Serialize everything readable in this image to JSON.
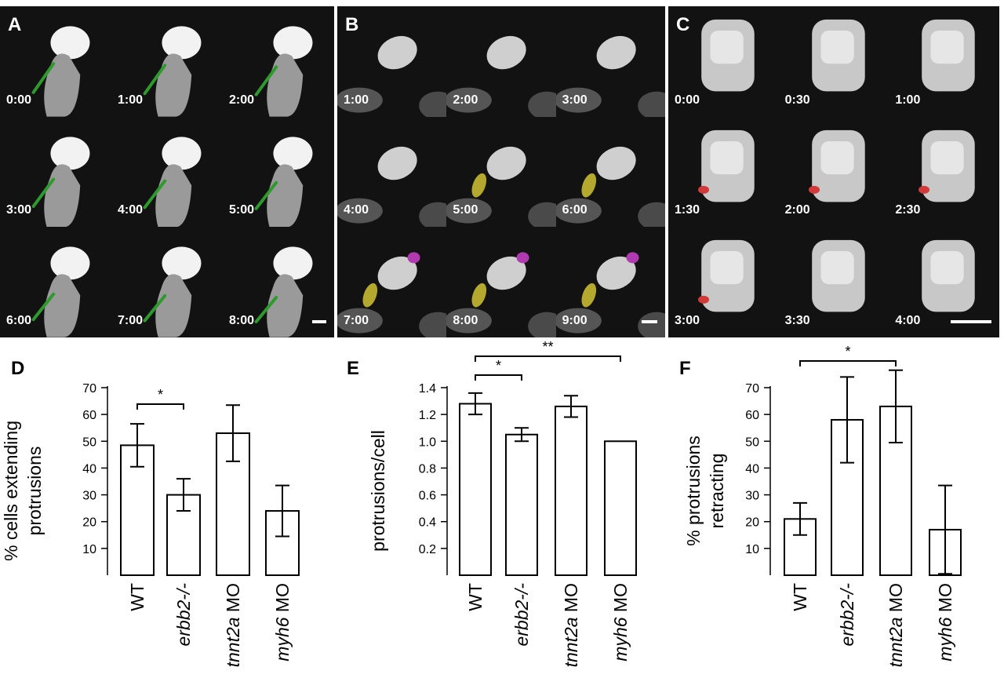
{
  "panels": {
    "A": {
      "letter": "A",
      "times": [
        "0:00",
        "1:00",
        "2:00",
        "3:00",
        "4:00",
        "5:00",
        "6:00",
        "7:00",
        "8:00"
      ],
      "overlay_color": "#2e9a2e"
    },
    "B": {
      "letter": "B",
      "times": [
        "1:00",
        "2:00",
        "3:00",
        "4:00",
        "5:00",
        "6:00",
        "7:00",
        "8:00",
        "9:00"
      ],
      "overlay_colors": [
        "#b4a82e",
        "#b03ab0"
      ]
    },
    "C": {
      "letter": "C",
      "times": [
        "0:00",
        "0:30",
        "1:00",
        "1:30",
        "2:00",
        "2:30",
        "3:00",
        "3:30",
        "4:00"
      ],
      "overlay_color": "#d23a3a"
    }
  },
  "chart_data": [
    {
      "letter": "D",
      "type": "bar",
      "ylabel_lines": [
        "% cells extending",
        "protrusions"
      ],
      "yticks": [
        "10",
        "20",
        "30",
        "40",
        "50",
        "60",
        "70"
      ],
      "ylim": [
        0,
        70
      ],
      "categories": [
        {
          "label": "WT",
          "italic": "",
          "suffix": ""
        },
        {
          "label": "erbb2-/-",
          "italic": "erbb2-/-",
          "suffix": ""
        },
        {
          "label": "tnnt2a MO",
          "italic": "tnnt2a",
          "suffix": " MO"
        },
        {
          "label": "myh6 MO",
          "italic": "myh6",
          "suffix": " MO"
        }
      ],
      "values": [
        48.5,
        30,
        53,
        24
      ],
      "errors": [
        8,
        6,
        10.5,
        9.5
      ],
      "significance": [
        {
          "from": 0,
          "to": 1,
          "label": "*"
        }
      ]
    },
    {
      "letter": "E",
      "type": "bar",
      "ylabel_lines": [
        "protrusions/cell"
      ],
      "yticks": [
        "0.2",
        "0.4",
        "0.6",
        "0.8",
        "1.0",
        "1.2",
        "1.4"
      ],
      "ylim": [
        0,
        1.4
      ],
      "categories": [
        {
          "label": "WT",
          "italic": "",
          "suffix": ""
        },
        {
          "label": "erbb2-/-",
          "italic": "erbb2-/-",
          "suffix": ""
        },
        {
          "label": "tnnt2a MO",
          "italic": "tnnt2a",
          "suffix": " MO"
        },
        {
          "label": "myh6 MO",
          "italic": "myh6",
          "suffix": " MO"
        }
      ],
      "values": [
        1.28,
        1.05,
        1.26,
        1.0
      ],
      "errors": [
        0.08,
        0.05,
        0.08,
        0
      ],
      "significance": [
        {
          "from": 0,
          "to": 1,
          "label": "*"
        },
        {
          "from": 0,
          "to": 3,
          "label": "**"
        }
      ]
    },
    {
      "letter": "F",
      "type": "bar",
      "ylabel_lines": [
        "% protrusions",
        "retracting"
      ],
      "yticks": [
        "10",
        "20",
        "30",
        "40",
        "50",
        "60",
        "70"
      ],
      "ylim": [
        0,
        70
      ],
      "categories": [
        {
          "label": "WT",
          "italic": "",
          "suffix": ""
        },
        {
          "label": "erbb2-/-",
          "italic": "erbb2-/-",
          "suffix": ""
        },
        {
          "label": "tnnt2a MO",
          "italic": "tnnt2a",
          "suffix": " MO"
        },
        {
          "label": "myh6 MO",
          "italic": "myh6",
          "suffix": " MO"
        }
      ],
      "values": [
        21,
        58,
        63,
        17
      ],
      "errors": [
        6,
        16,
        13.5,
        16.5
      ],
      "significance": [
        {
          "from": 0,
          "to": 2,
          "label": "*"
        }
      ]
    }
  ]
}
